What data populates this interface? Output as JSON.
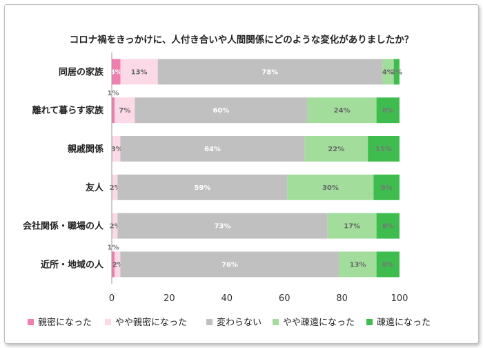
{
  "chart_data": {
    "type": "bar",
    "orientation": "horizontal",
    "stacked": true,
    "title": "コロナ禍をきっかけに、人付き合いや人間関係にどのような変化がありましたか？",
    "categories": [
      "同居の家族",
      "離れて暮らす家族",
      "親戚関係",
      "友人",
      "会社関係・職場の人",
      "近所・地域の人"
    ],
    "series": [
      {
        "name": "親密になった",
        "color": "#f07fb0",
        "values": [
          3,
          1,
          0,
          0,
          0,
          1
        ],
        "labels": [
          "3%",
          "1%",
          "",
          "",
          "",
          "1%"
        ]
      },
      {
        "name": "やや親密になった",
        "color": "#fbd9e7",
        "values": [
          13,
          7,
          3,
          2,
          2,
          2
        ],
        "labels": [
          "13%",
          "7%",
          "3%",
          "2%",
          "2%",
          "2%"
        ]
      },
      {
        "name": "変わらない",
        "color": "#c0c0c0",
        "values": [
          78,
          60,
          64,
          59,
          73,
          76
        ],
        "labels": [
          "78%",
          "60%",
          "64%",
          "59%",
          "73%",
          "76%"
        ]
      },
      {
        "name": "やや疎遠になった",
        "color": "#a2dd9c",
        "values": [
          4,
          24,
          22,
          30,
          17,
          13
        ],
        "labels": [
          "4%",
          "24%",
          "22%",
          "30%",
          "17%",
          "13%"
        ]
      },
      {
        "name": "疎遠になった",
        "color": "#3ebd4e",
        "values": [
          2,
          8,
          11,
          9,
          8,
          8
        ],
        "labels": [
          "2%",
          "8%",
          "11%",
          "9%",
          "8%",
          "8%"
        ]
      }
    ],
    "xlim": [
      0,
      100
    ],
    "xticks": [
      "0",
      "20",
      "40",
      "60",
      "80",
      "100"
    ],
    "legend_position": "bottom",
    "grid": false
  }
}
